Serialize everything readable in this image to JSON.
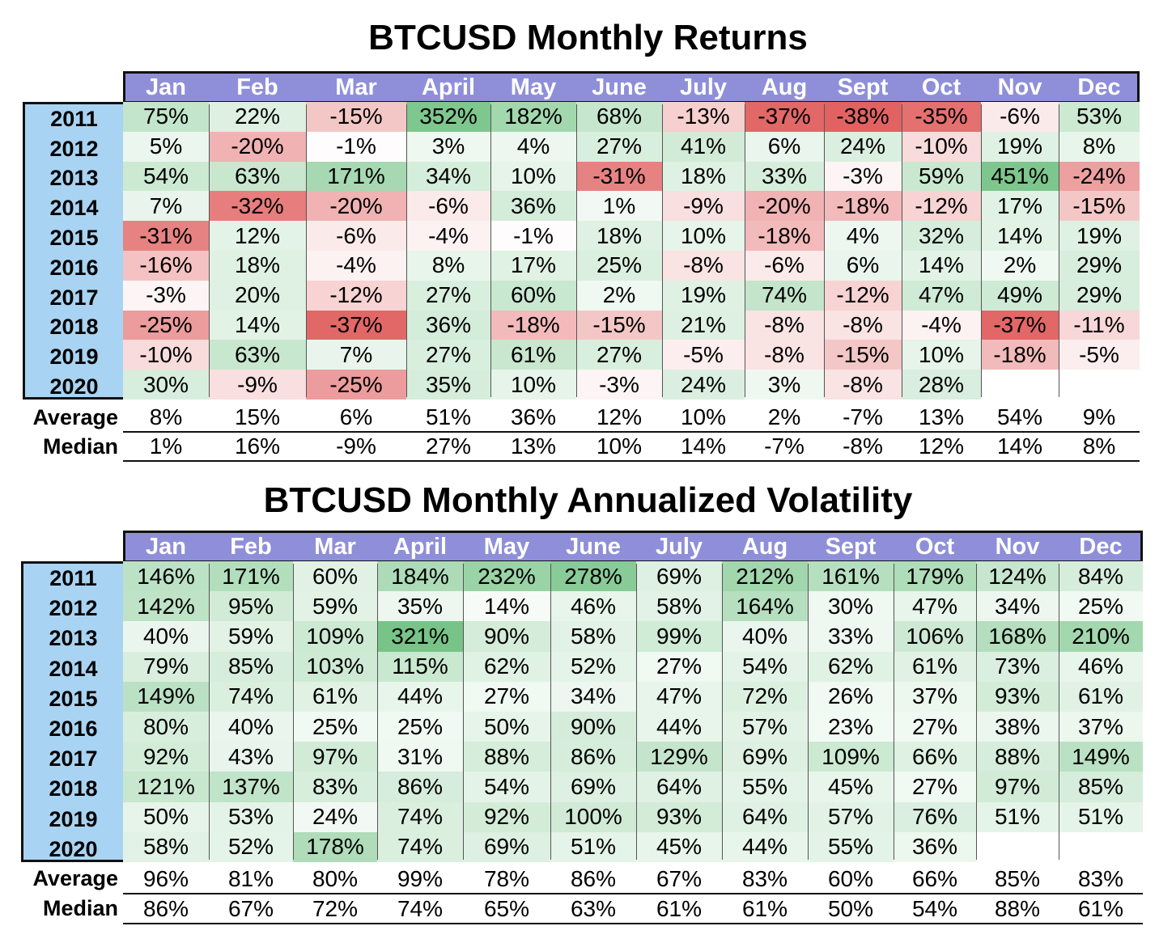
{
  "chart_data": [
    {
      "type": "table",
      "title": "BTCUSD Monthly Returns",
      "columns": [
        "Jan",
        "Feb",
        "Mar",
        "April",
        "May",
        "June",
        "July",
        "Aug",
        "Sept",
        "Oct",
        "Nov",
        "Dec"
      ],
      "rows": [
        "2011",
        "2012",
        "2013",
        "2014",
        "2015",
        "2016",
        "2017",
        "2018",
        "2019",
        "2020"
      ],
      "values": [
        [
          75,
          22,
          -15,
          352,
          182,
          68,
          -13,
          -37,
          -38,
          -35,
          -6,
          53
        ],
        [
          5,
          -20,
          -1,
          3,
          4,
          27,
          41,
          6,
          24,
          -10,
          19,
          8
        ],
        [
          54,
          63,
          171,
          34,
          10,
          -31,
          18,
          33,
          -3,
          59,
          451,
          -24
        ],
        [
          7,
          -32,
          -20,
          -6,
          36,
          1,
          -9,
          -20,
          -18,
          -12,
          17,
          -15
        ],
        [
          -31,
          12,
          -6,
          -4,
          -1,
          18,
          10,
          -18,
          4,
          32,
          14,
          19
        ],
        [
          -16,
          18,
          -4,
          8,
          17,
          25,
          -8,
          -6,
          6,
          14,
          2,
          29
        ],
        [
          -3,
          20,
          -12,
          27,
          60,
          2,
          19,
          74,
          -12,
          47,
          49,
          29
        ],
        [
          -25,
          14,
          -37,
          36,
          -18,
          -15,
          21,
          -8,
          -8,
          -4,
          -37,
          -11
        ],
        [
          -10,
          63,
          7,
          27,
          61,
          27,
          -5,
          -8,
          -15,
          10,
          -18,
          -5
        ],
        [
          30,
          -9,
          -25,
          35,
          10,
          -3,
          24,
          3,
          -8,
          28,
          null,
          null
        ]
      ],
      "summary": [
        {
          "label": "Average",
          "values": [
            8,
            15,
            6,
            51,
            36,
            12,
            10,
            2,
            -7,
            13,
            54,
            9
          ]
        },
        {
          "label": "Median",
          "values": [
            1,
            16,
            -9,
            27,
            13,
            10,
            14,
            -7,
            -8,
            12,
            14,
            8
          ]
        }
      ],
      "unit": "%",
      "colors": {
        "positive": "#5cb870",
        "negative": "#e05a5a"
      }
    },
    {
      "type": "table",
      "title": "BTCUSD Monthly Annualized Volatility",
      "columns": [
        "Jan",
        "Feb",
        "Mar",
        "April",
        "May",
        "June",
        "July",
        "Aug",
        "Sept",
        "Oct",
        "Nov",
        "Dec"
      ],
      "rows": [
        "2011",
        "2012",
        "2013",
        "2014",
        "2015",
        "2016",
        "2017",
        "2018",
        "2019",
        "2020"
      ],
      "values": [
        [
          146,
          171,
          60,
          184,
          232,
          278,
          69,
          212,
          161,
          179,
          124,
          84
        ],
        [
          142,
          95,
          59,
          35,
          14,
          46,
          58,
          164,
          30,
          47,
          34,
          25
        ],
        [
          40,
          59,
          109,
          321,
          90,
          58,
          99,
          40,
          33,
          106,
          168,
          210
        ],
        [
          79,
          85,
          103,
          115,
          62,
          52,
          27,
          54,
          62,
          61,
          73,
          46
        ],
        [
          149,
          74,
          61,
          44,
          27,
          34,
          47,
          72,
          26,
          37,
          93,
          61
        ],
        [
          80,
          40,
          25,
          25,
          50,
          90,
          44,
          57,
          23,
          27,
          38,
          37
        ],
        [
          92,
          43,
          97,
          31,
          88,
          86,
          129,
          69,
          109,
          66,
          88,
          149
        ],
        [
          121,
          137,
          83,
          86,
          54,
          69,
          64,
          55,
          45,
          27,
          97,
          85
        ],
        [
          50,
          53,
          24,
          74,
          92,
          100,
          93,
          64,
          57,
          76,
          51,
          51
        ],
        [
          58,
          52,
          178,
          74,
          69,
          51,
          45,
          44,
          55,
          36,
          null,
          null
        ]
      ],
      "summary": [
        {
          "label": "Average",
          "values": [
            96,
            81,
            80,
            99,
            78,
            86,
            67,
            83,
            60,
            66,
            85,
            83
          ]
        },
        {
          "label": "Median",
          "values": [
            86,
            67,
            72,
            74,
            65,
            63,
            61,
            61,
            50,
            54,
            88,
            61
          ]
        }
      ],
      "unit": "%",
      "colors": {
        "positive": "#5cb870"
      }
    }
  ]
}
